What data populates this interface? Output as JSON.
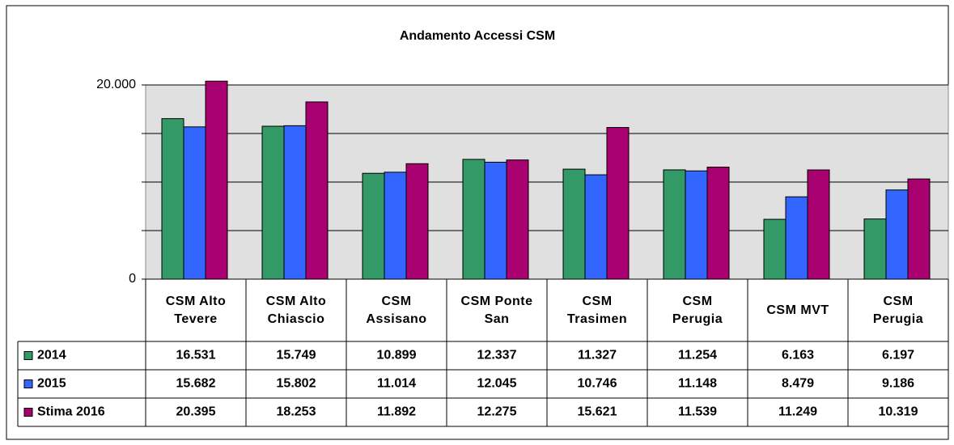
{
  "chart_data": {
    "type": "bar",
    "title": "Andamento Accessi CSM",
    "categories": [
      "CSM Alto Tevere",
      "CSM Alto Chiascio",
      "CSM Assisano",
      "CSM Ponte San",
      "CSM Trasimen",
      "CSM Perugia",
      "CSM MVT",
      "CSM Perugia"
    ],
    "series": [
      {
        "name": "2014",
        "color": "#339966",
        "values": [
          16531,
          15749,
          10899,
          12337,
          11327,
          11254,
          6163,
          6197
        ],
        "value_labels": [
          "16.531",
          "15.749",
          "10.899",
          "12.337",
          "11.327",
          "11.254",
          "6.163",
          "6.197"
        ]
      },
      {
        "name": "2015",
        "color": "#3366ff",
        "values": [
          15682,
          15802,
          11014,
          12045,
          10746,
          11148,
          8479,
          9186
        ],
        "value_labels": [
          "15.682",
          "15.802",
          "11.014",
          "12.045",
          "10.746",
          "11.148",
          "8.479",
          "9.186"
        ]
      },
      {
        "name": "Stima 2016",
        "color": "#a8006e",
        "values": [
          20395,
          18253,
          11892,
          12275,
          15621,
          11539,
          11249,
          10319
        ],
        "value_labels": [
          "20.395",
          "18.253",
          "11.892",
          "12.275",
          "15.621",
          "11.539",
          "11.249",
          "10.319"
        ]
      }
    ],
    "ylim": [
      0,
      20000
    ],
    "yticks": [
      0,
      {
        "value": 5000,
        "label": null
      },
      {
        "value": 10000,
        "label": null
      },
      {
        "value": 15000,
        "label": null
      },
      {
        "value": 20000,
        "label": "20.000"
      }
    ],
    "grid": true,
    "legend": "data-table"
  }
}
